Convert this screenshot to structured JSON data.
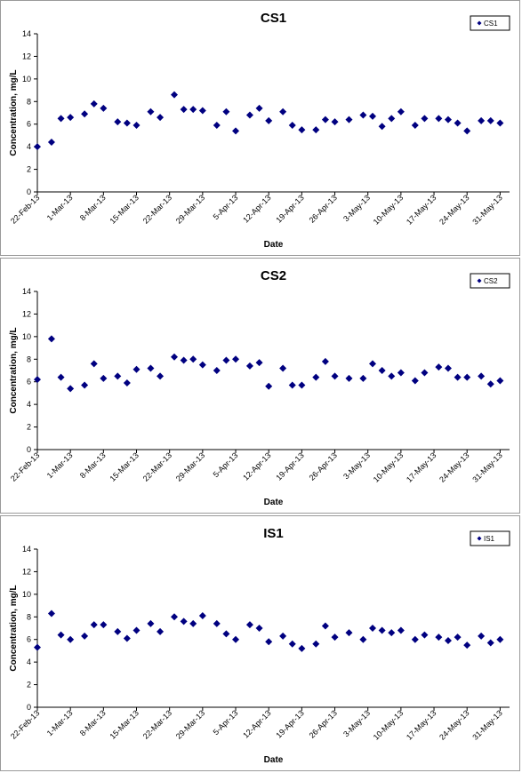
{
  "chart_data": [
    {
      "type": "scatter",
      "title": "CS1",
      "xlabel": "Date",
      "ylabel": "Concentration, mg/L",
      "ylim": [
        0,
        14
      ],
      "yticks": [
        0,
        2,
        4,
        6,
        8,
        10,
        12,
        14
      ],
      "xlim": [
        "2013-02-22",
        "2013-06-02"
      ],
      "xtick_labels": [
        "22-Feb-13",
        "1-Mar-13",
        "8-Mar-13",
        "15-Mar-13",
        "22-Mar-13",
        "29-Mar-13",
        "5-Apr-13",
        "12-Apr-13",
        "19-Apr-13",
        "26-Apr-13",
        "3-May-13",
        "10-May-13",
        "17-May-13",
        "24-May-13",
        "31-May-13"
      ],
      "grid": false,
      "legend": "top-right",
      "marker": "diamond",
      "color": "#000080",
      "series": [
        {
          "name": "CS1",
          "x": [
            "2013-02-22",
            "2013-02-25",
            "2013-02-27",
            "2013-03-01",
            "2013-03-04",
            "2013-03-06",
            "2013-03-08",
            "2013-03-11",
            "2013-03-13",
            "2013-03-15",
            "2013-03-18",
            "2013-03-20",
            "2013-03-23",
            "2013-03-25",
            "2013-03-27",
            "2013-03-29",
            "2013-04-01",
            "2013-04-03",
            "2013-04-05",
            "2013-04-08",
            "2013-04-10",
            "2013-04-12",
            "2013-04-15",
            "2013-04-17",
            "2013-04-19",
            "2013-04-22",
            "2013-04-24",
            "2013-04-26",
            "2013-04-29",
            "2013-05-02",
            "2013-05-04",
            "2013-05-06",
            "2013-05-08",
            "2013-05-10",
            "2013-05-13",
            "2013-05-15",
            "2013-05-18",
            "2013-05-20",
            "2013-05-22",
            "2013-05-24",
            "2013-05-27",
            "2013-05-29",
            "2013-05-31"
          ],
          "y": [
            4.0,
            4.4,
            6.5,
            6.6,
            6.9,
            7.8,
            7.4,
            6.2,
            6.1,
            5.9,
            7.1,
            6.6,
            8.6,
            7.3,
            7.3,
            7.2,
            5.9,
            7.1,
            5.4,
            6.8,
            7.4,
            6.3,
            7.1,
            5.9,
            5.5,
            5.5,
            6.4,
            6.2,
            6.4,
            6.8,
            6.7,
            5.8,
            6.5,
            7.1,
            5.9,
            6.5,
            6.5,
            6.4,
            6.1,
            5.4,
            6.3,
            6.3,
            6.1
          ]
        }
      ]
    },
    {
      "type": "scatter",
      "title": "CS2",
      "xlabel": "Date",
      "ylabel": "Concentration, mg/L",
      "ylim": [
        0,
        14
      ],
      "yticks": [
        0,
        2,
        4,
        6,
        8,
        10,
        12,
        14
      ],
      "xlim": [
        "2013-02-22",
        "2013-06-02"
      ],
      "xtick_labels": [
        "22-Feb-13",
        "1-Mar-13",
        "8-Mar-13",
        "15-Mar-13",
        "22-Mar-13",
        "29-Mar-13",
        "5-Apr-13",
        "12-Apr-13",
        "19-Apr-13",
        "26-Apr-13",
        "3-May-13",
        "10-May-13",
        "17-May-13",
        "24-May-13",
        "31-May-13"
      ],
      "grid": false,
      "legend": "top-right",
      "marker": "diamond",
      "color": "#000080",
      "series": [
        {
          "name": "CS2",
          "x": [
            "2013-02-22",
            "2013-02-25",
            "2013-02-27",
            "2013-03-01",
            "2013-03-04",
            "2013-03-06",
            "2013-03-08",
            "2013-03-11",
            "2013-03-13",
            "2013-03-15",
            "2013-03-18",
            "2013-03-20",
            "2013-03-23",
            "2013-03-25",
            "2013-03-27",
            "2013-03-29",
            "2013-04-01",
            "2013-04-03",
            "2013-04-05",
            "2013-04-08",
            "2013-04-10",
            "2013-04-12",
            "2013-04-15",
            "2013-04-17",
            "2013-04-19",
            "2013-04-22",
            "2013-04-24",
            "2013-04-26",
            "2013-04-29",
            "2013-05-02",
            "2013-05-04",
            "2013-05-06",
            "2013-05-08",
            "2013-05-10",
            "2013-05-13",
            "2013-05-15",
            "2013-05-18",
            "2013-05-20",
            "2013-05-22",
            "2013-05-24",
            "2013-05-27",
            "2013-05-29",
            "2013-05-31"
          ],
          "y": [
            6.2,
            9.8,
            6.4,
            5.4,
            5.7,
            7.6,
            6.3,
            6.5,
            5.9,
            7.1,
            7.2,
            6.5,
            8.2,
            7.9,
            8.0,
            7.5,
            7.0,
            7.9,
            8.0,
            7.4,
            7.7,
            5.6,
            7.2,
            5.7,
            5.7,
            6.4,
            7.8,
            6.5,
            6.3,
            6.3,
            7.6,
            7.0,
            6.5,
            6.8,
            6.1,
            6.8,
            7.3,
            7.2,
            6.4,
            6.4,
            6.5,
            5.8,
            6.1
          ]
        }
      ]
    },
    {
      "type": "scatter",
      "title": "IS1",
      "xlabel": "Date",
      "ylabel": "Concentration, mg/L",
      "ylim": [
        0,
        14
      ],
      "yticks": [
        0,
        2,
        4,
        6,
        8,
        10,
        12,
        14
      ],
      "xlim": [
        "2013-02-22",
        "2013-06-02"
      ],
      "xtick_labels": [
        "22-Feb-13",
        "1-Mar-13",
        "8-Mar-13",
        "15-Mar-13",
        "22-Mar-13",
        "29-Mar-13",
        "5-Apr-13",
        "12-Apr-13",
        "19-Apr-13",
        "26-Apr-13",
        "3-May-13",
        "10-May-13",
        "17-May-13",
        "24-May-13",
        "31-May-13"
      ],
      "grid": false,
      "legend": "top-right",
      "marker": "diamond",
      "color": "#000080",
      "series": [
        {
          "name": "IS1",
          "x": [
            "2013-02-22",
            "2013-02-25",
            "2013-02-27",
            "2013-03-01",
            "2013-03-04",
            "2013-03-06",
            "2013-03-08",
            "2013-03-11",
            "2013-03-13",
            "2013-03-15",
            "2013-03-18",
            "2013-03-20",
            "2013-03-23",
            "2013-03-25",
            "2013-03-27",
            "2013-03-29",
            "2013-04-01",
            "2013-04-03",
            "2013-04-05",
            "2013-04-08",
            "2013-04-10",
            "2013-04-12",
            "2013-04-15",
            "2013-04-17",
            "2013-04-19",
            "2013-04-22",
            "2013-04-24",
            "2013-04-26",
            "2013-04-29",
            "2013-05-02",
            "2013-05-04",
            "2013-05-06",
            "2013-05-08",
            "2013-05-10",
            "2013-05-13",
            "2013-05-15",
            "2013-05-18",
            "2013-05-20",
            "2013-05-22",
            "2013-05-24",
            "2013-05-27",
            "2013-05-29",
            "2013-05-31"
          ],
          "y": [
            5.3,
            8.3,
            6.4,
            6.0,
            6.3,
            7.3,
            7.3,
            6.7,
            6.1,
            6.8,
            7.4,
            6.7,
            8.0,
            7.6,
            7.4,
            8.1,
            7.4,
            6.5,
            6.0,
            7.3,
            7.0,
            5.8,
            6.3,
            5.6,
            5.2,
            5.6,
            7.2,
            6.2,
            6.6,
            6.0,
            7.0,
            6.8,
            6.6,
            6.8,
            6.0,
            6.4,
            6.2,
            5.9,
            6.2,
            5.5,
            6.3,
            5.7,
            6.0
          ]
        }
      ]
    }
  ]
}
